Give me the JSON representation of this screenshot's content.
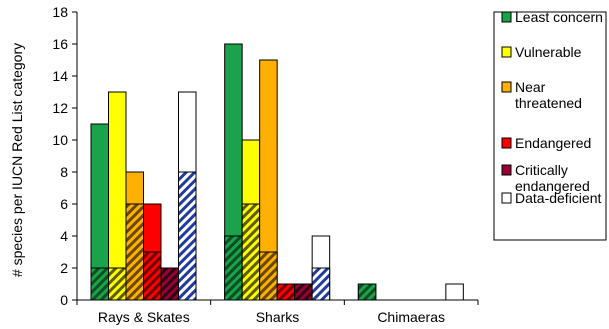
{
  "chart_data": {
    "type": "bar",
    "title": "",
    "xlabel": "",
    "ylabel": "# species per IUCN Red List category",
    "ylim": [
      0,
      18
    ],
    "yticks": [
      0,
      2,
      4,
      6,
      8,
      10,
      12,
      14,
      16,
      18
    ],
    "grid": false,
    "legend_position": "right",
    "categories": [
      "Rays & Skates",
      "Sharks",
      "Chimaeras"
    ],
    "series": [
      {
        "name": "Least concern",
        "color": "#1aa34a",
        "values": [
          11,
          16,
          1
        ],
        "hatched_values": [
          2,
          4,
          1
        ]
      },
      {
        "name": "Vulnerable",
        "color": "#ffff00",
        "values": [
          13,
          10,
          0
        ],
        "hatched_values": [
          2,
          6,
          0
        ]
      },
      {
        "name": "Near threatened",
        "color": "#ffb000",
        "values": [
          8,
          15,
          0
        ],
        "hatched_values": [
          6,
          3,
          0
        ]
      },
      {
        "name": "Endangered",
        "color": "#ff0000",
        "values": [
          6,
          1,
          0
        ],
        "hatched_values": [
          3,
          1,
          0
        ]
      },
      {
        "name": "Critically endangered",
        "color": "#990033",
        "values": [
          2,
          1,
          0
        ],
        "hatched_values": [
          2,
          1,
          0
        ]
      },
      {
        "name": "Data-deficient",
        "color": "#ffffff",
        "values": [
          13,
          4,
          1
        ],
        "hatched_values": [
          8,
          2,
          0
        ]
      }
    ],
    "legend_labels": [
      [
        "Least concern"
      ],
      [
        "Vulnerable"
      ],
      [
        "Near",
        "threatened"
      ],
      [
        "Endangered"
      ],
      [
        "Critically",
        "endangered"
      ],
      [
        "Data-deficient"
      ]
    ],
    "hatch_colors": {
      "#1aa34a": "#0b4f22",
      "#ffff00": "#5d5d00",
      "#ffb000": "#6a4800",
      "#ff0000": "#6c0000",
      "#990033": "#2e0011",
      "#ffffff": "#1f3c9c"
    }
  }
}
